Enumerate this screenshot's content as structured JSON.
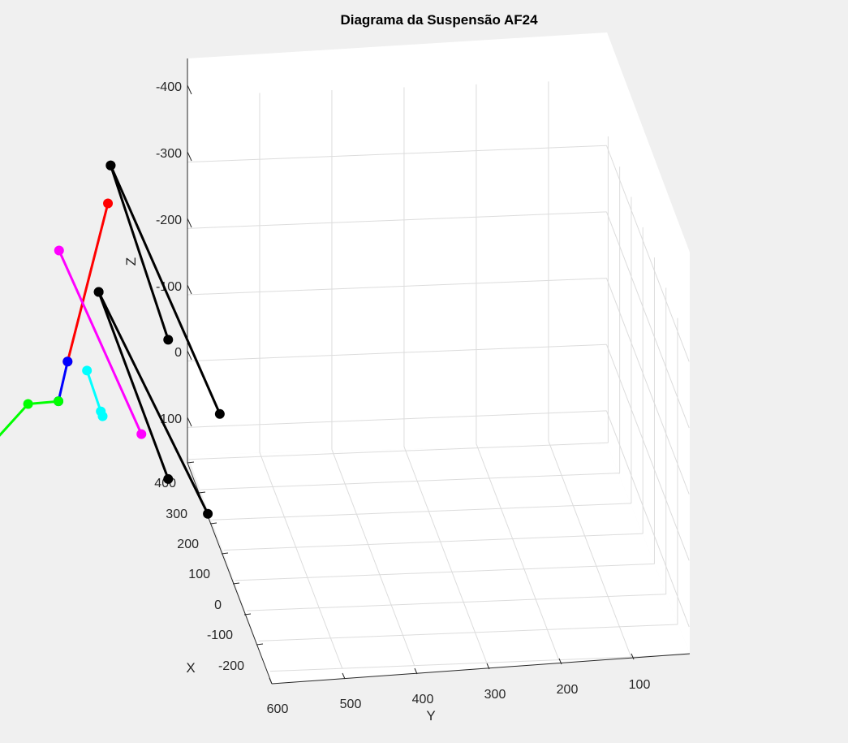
{
  "chart_data": {
    "type": "line3d",
    "title": "Diagrama da Suspensão AF24",
    "xlabel": "X",
    "ylabel": "Y",
    "zlabel": "Z",
    "x_ticks": [
      "400",
      "300",
      "200",
      "100",
      "0",
      "-100",
      "-200"
    ],
    "y_ticks": [
      "600",
      "500",
      "400",
      "300",
      "200",
      "100"
    ],
    "z_ticks": [
      "-400",
      "-300",
      "-200",
      "-100",
      "0",
      "100"
    ],
    "z_direction": "reversed",
    "grid": true,
    "background": "#f0f0f0",
    "axes_background": "#ffffff",
    "series": [
      {
        "color": "#000000",
        "kind": "upper-wishbone-front",
        "points": [
          [
            -90,
            30,
            -180
          ],
          [
            350,
            10,
            -120
          ]
        ]
      },
      {
        "color": "#000000",
        "kind": "upper-wishbone-rear",
        "points": [
          [
            350,
            10,
            -120
          ],
          [
            -110,
            -10,
            -80
          ]
        ]
      },
      {
        "color": "#000000",
        "kind": "lower-wishbone-front",
        "points": [
          [
            -90,
            30,
            30
          ],
          [
            350,
            20,
            70
          ]
        ]
      },
      {
        "color": "#000000",
        "kind": "lower-wishbone-rear",
        "points": [
          [
            350,
            20,
            70
          ],
          [
            -110,
            0,
            70
          ]
        ]
      },
      {
        "color": "#ff0000",
        "kind": "pushrod",
        "points": [
          [
            300,
            20,
            -100
          ],
          [
            130,
            80,
            10
          ]
        ]
      },
      {
        "color": "#ff00ff",
        "kind": "tie-rod",
        "points": [
          [
            370,
            50,
            20
          ],
          [
            -10,
            40,
            20
          ]
        ]
      },
      {
        "color": "#0000ff",
        "kind": "rocker",
        "points": [
          [
            130,
            80,
            10
          ],
          [
            50,
            100,
            10
          ]
        ]
      },
      {
        "color": "#00ff00",
        "kind": "damper",
        "points": [
          [
            50,
            100,
            10
          ],
          [
            20,
            130,
            -10
          ],
          [
            -230,
            260,
            -20
          ]
        ]
      },
      {
        "color": "#00ffff",
        "kind": "upright",
        "points": [
          [
            90,
            70,
            -5
          ],
          [
            80,
            60,
            50
          ],
          [
            70,
            60,
            50
          ]
        ]
      },
      {
        "color": "#ff0000",
        "kind": "marker",
        "points": [
          [
            480,
            150,
            -30
          ]
        ]
      },
      {
        "color": "#0000ff",
        "kind": "marker",
        "points": [
          [
            380,
            150,
            200
          ]
        ]
      }
    ]
  }
}
